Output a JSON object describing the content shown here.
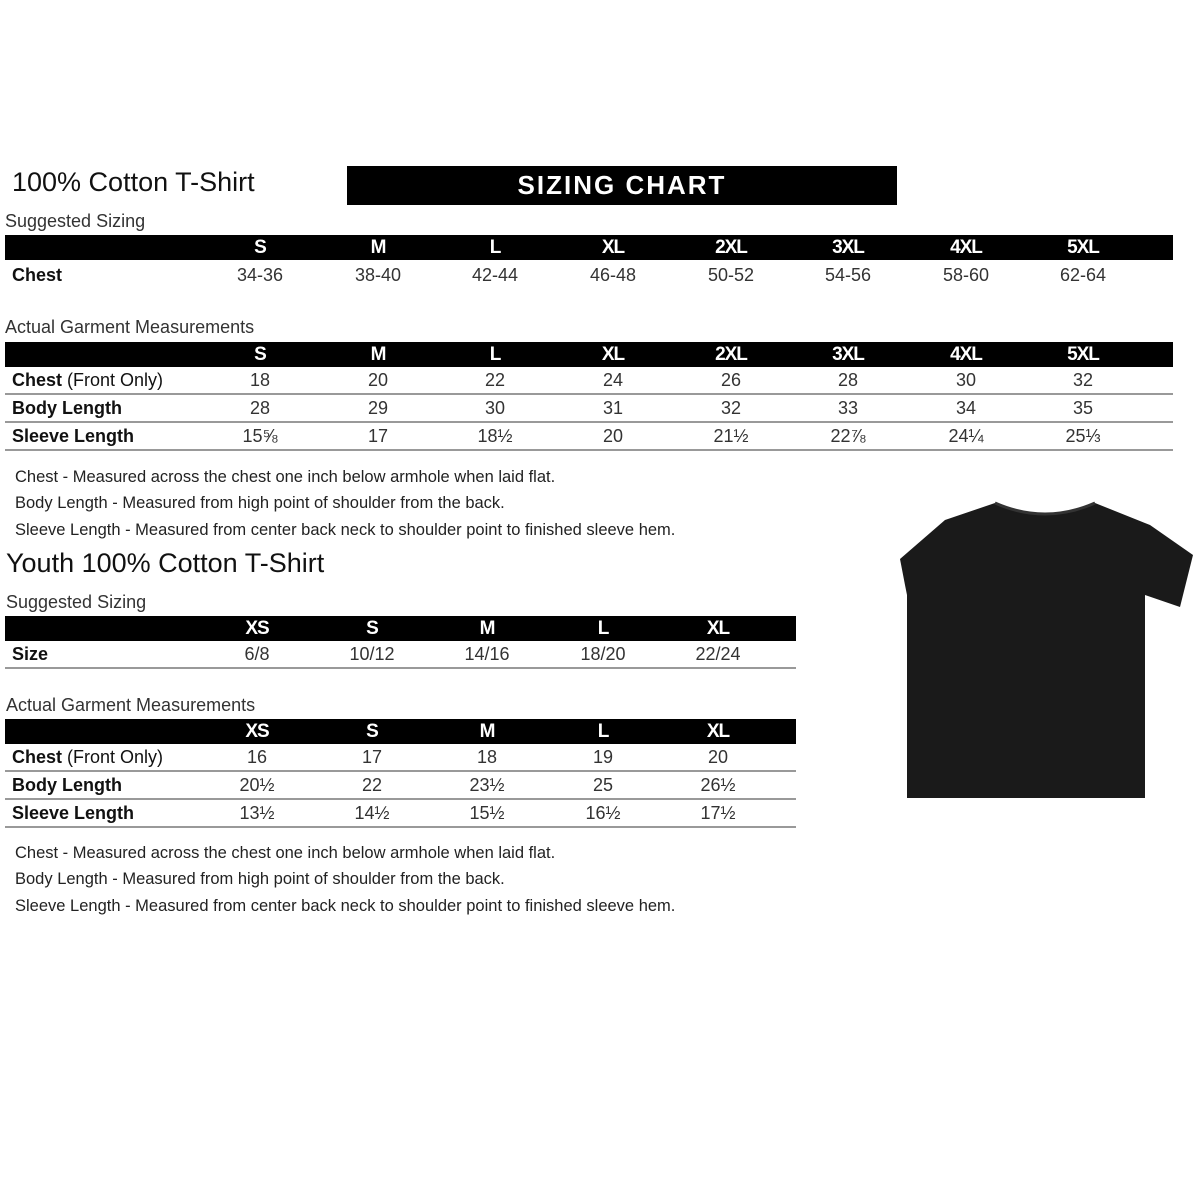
{
  "adult": {
    "title": "100% Cotton T-Shirt",
    "banner": "SIZING CHART",
    "suggested_label": "Suggested Sizing",
    "sizes": [
      "S",
      "M",
      "L",
      "XL",
      "2XL",
      "3XL",
      "4XL",
      "5XL"
    ],
    "suggested_rows": [
      {
        "label": "Chest",
        "values": [
          "34-36",
          "38-40",
          "42-44",
          "46-48",
          "50-52",
          "54-56",
          "58-60",
          "62-64"
        ]
      }
    ],
    "actual_label": "Actual Garment Measurements",
    "actual_rows": [
      {
        "label": "Chest (Front Only)",
        "values": [
          "18",
          "20",
          "22",
          "24",
          "26",
          "28",
          "30",
          "32"
        ]
      },
      {
        "label": "Body Length",
        "values": [
          "28",
          "29",
          "30",
          "31",
          "32",
          "33",
          "34",
          "35"
        ]
      },
      {
        "label": "Sleeve Length",
        "values": [
          "15⅝",
          "17",
          "18½",
          "20",
          "21½",
          "22⅞",
          "24¼",
          "25⅓"
        ]
      }
    ],
    "notes": [
      "Chest - Measured across the chest one inch below armhole when laid flat.",
      "Body Length - Measured from high point of shoulder from the back.",
      "Sleeve Length - Measured from center back neck to shoulder point to finished sleeve hem."
    ]
  },
  "youth": {
    "title": "Youth 100% Cotton T-Shirt",
    "suggested_label": "Suggested Sizing",
    "sizes": [
      "XS",
      "S",
      "M",
      "L",
      "XL"
    ],
    "suggested_rows": [
      {
        "label": "Size",
        "values": [
          "6/8",
          "10/12",
          "14/16",
          "18/20",
          "22/24"
        ]
      }
    ],
    "actual_label": "Actual Garment Measurements",
    "actual_rows": [
      {
        "label": "Chest (Front Only)",
        "values": [
          "16",
          "17",
          "18",
          "19",
          "20"
        ]
      },
      {
        "label": "Body Length",
        "values": [
          "20½",
          "22",
          "23½",
          "25",
          "26½"
        ]
      },
      {
        "label": "Sleeve Length",
        "values": [
          "13½",
          "14½",
          "15½",
          "16½",
          "17½"
        ]
      }
    ],
    "notes": [
      "Chest - Measured across the chest one inch below armhole when laid flat.",
      "Body Length - Measured from high point of shoulder from the back.",
      "Sleeve Length - Measured from center back neck to shoulder point to finished sleeve hem."
    ]
  },
  "tshirt_color": "#1a1a1a"
}
